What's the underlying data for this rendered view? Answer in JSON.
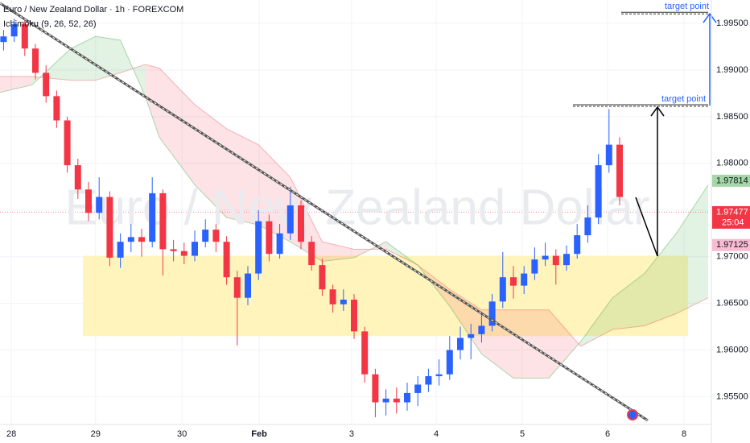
{
  "chart_data": {
    "type": "candlestick",
    "title": "Euro / New Zealand Dollar · 1h · FOREXCOM",
    "subtitle": "Ichimoku (9, 26, 52, 26)",
    "watermark": "Euro / New Zealand Dollar",
    "up_color": "#2962ff",
    "down_color": "#f23645",
    "x": [
      1,
      4,
      7,
      10,
      13,
      16,
      19,
      22,
      25,
      28,
      31,
      34,
      37,
      40,
      43,
      46,
      49,
      52,
      55,
      58,
      61,
      64,
      67,
      70,
      73,
      76,
      79,
      82,
      85,
      88,
      91,
      94,
      97,
      100,
      103,
      106,
      109,
      112,
      115,
      118,
      121,
      124,
      127,
      130,
      133,
      136,
      139,
      142,
      145,
      148,
      151,
      154,
      157,
      160,
      163,
      166,
      169,
      172,
      175
    ],
    "open": [
      1.993,
      1.9936,
      1.9949,
      1.9923,
      1.9897,
      1.9872,
      1.9846,
      1.9798,
      1.9772,
      1.9747,
      1.9764,
      1.9699,
      1.9716,
      1.9721,
      1.9716,
      1.9768,
      1.9708,
      1.9706,
      1.9701,
      1.9716,
      1.9729,
      1.9716,
      1.9678,
      1.9656,
      1.9682,
      1.9738,
      1.9703,
      1.9725,
      1.9755,
      1.9716,
      1.9691,
      1.9665,
      1.9649,
      1.9654,
      1.962,
      1.9574,
      1.9544,
      1.9548,
      1.9544,
      1.9554,
      1.9563,
      1.9572,
      1.9574,
      1.96,
      1.9613,
      1.9617,
      1.9626,
      1.9652,
      1.9678,
      1.9669,
      1.9682,
      1.9697,
      1.9701,
      1.9691,
      1.9703,
      1.9723,
      1.9742,
      1.9798,
      1.982
    ],
    "high": [
      1.9943,
      1.9955,
      1.9953,
      1.9928,
      1.9905,
      1.9878,
      1.985,
      1.9805,
      1.978,
      1.9785,
      1.977,
      1.9725,
      1.9735,
      1.973,
      1.9785,
      1.9772,
      1.9718,
      1.9715,
      1.9728,
      1.974,
      1.9735,
      1.9722,
      1.9685,
      1.969,
      1.975,
      1.9745,
      1.9735,
      1.9775,
      1.976,
      1.9722,
      1.9698,
      1.967,
      1.9665,
      1.966,
      1.9625,
      1.958,
      1.9558,
      1.956,
      1.9565,
      1.9572,
      1.958,
      1.959,
      1.9615,
      1.9625,
      1.9628,
      1.964,
      1.966,
      1.9705,
      1.969,
      1.969,
      1.971,
      1.9715,
      1.9708,
      1.9712,
      1.9735,
      1.9755,
      1.981,
      1.9858,
      1.9828
    ],
    "low": [
      1.9921,
      1.993,
      1.9915,
      1.989,
      1.9865,
      1.9838,
      1.979,
      1.9762,
      1.9738,
      1.974,
      1.969,
      1.9688,
      1.9705,
      1.97,
      1.971,
      1.968,
      1.9695,
      1.9692,
      1.9695,
      1.971,
      1.9705,
      1.967,
      1.9605,
      1.9648,
      1.9675,
      1.9695,
      1.9698,
      1.9718,
      1.9708,
      1.9685,
      1.9658,
      1.964,
      1.9642,
      1.9612,
      1.9565,
      1.9528,
      1.953,
      1.9532,
      1.9535,
      1.954,
      1.9555,
      1.9562,
      1.9568,
      1.959,
      1.959,
      1.9608,
      1.962,
      1.9645,
      1.9655,
      1.966,
      1.9675,
      1.969,
      1.967,
      1.9685,
      1.9698,
      1.9715,
      1.9735,
      1.979,
      1.9755
    ],
    "close": [
      1.9936,
      1.9949,
      1.9923,
      1.9897,
      1.9872,
      1.9846,
      1.9798,
      1.9772,
      1.9747,
      1.9764,
      1.9699,
      1.9716,
      1.9721,
      1.9716,
      1.9768,
      1.9708,
      1.9706,
      1.9701,
      1.9716,
      1.9729,
      1.9716,
      1.9678,
      1.9656,
      1.9682,
      1.9738,
      1.9703,
      1.9725,
      1.9755,
      1.9716,
      1.9691,
      1.9665,
      1.9649,
      1.9654,
      1.962,
      1.9574,
      1.9544,
      1.9548,
      1.9544,
      1.9554,
      1.9563,
      1.9572,
      1.9574,
      1.96,
      1.9613,
      1.9617,
      1.9626,
      1.9652,
      1.9678,
      1.9669,
      1.9682,
      1.9697,
      1.9701,
      1.9691,
      1.9703,
      1.9723,
      1.9742,
      1.9798,
      1.982,
      1.9764
    ],
    "ichimoku": {
      "x": [
        0,
        9,
        20,
        27,
        34,
        41,
        45,
        55,
        64,
        73,
        82,
        91,
        100,
        109,
        118,
        127,
        136,
        145,
        155,
        164,
        173,
        182,
        191,
        200
      ],
      "span_a": [
        1.9876,
        1.9884,
        1.9923,
        1.9936,
        1.9932,
        1.9872,
        1.9828,
        1.9777,
        1.9742,
        1.9734,
        1.9716,
        1.9695,
        1.9699,
        1.9716,
        1.9691,
        1.9647,
        1.9596,
        1.957,
        1.957,
        1.9609,
        1.9656,
        1.9682,
        1.9725,
        1.9777
      ],
      "span_b": [
        1.9893,
        1.9893,
        1.9889,
        1.9889,
        1.9897,
        1.9906,
        1.9902,
        1.9863,
        1.9837,
        1.982,
        1.9785,
        1.9716,
        1.9708,
        1.9708,
        1.9691,
        1.9665,
        1.9643,
        1.9643,
        1.9643,
        1.9604,
        1.9622,
        1.9626,
        1.9639,
        1.9656
      ]
    },
    "zone": [
      1.9615,
      1.9701
    ],
    "targets": [
      {
        "label": "target point",
        "value": 1.9862
      },
      {
        "label": "target point",
        "value": 1.9961
      }
    ],
    "price_labels": [
      {
        "value": 1.97814,
        "color": "#a5d6a7"
      },
      {
        "value": 1.97477,
        "color": "#f23645"
      },
      {
        "value": 1.97125,
        "color": "#f8bbd0"
      }
    ],
    "countdown": "25:04",
    "xlim": [
      0,
      200
    ],
    "xticks": [
      {
        "value": 3.2,
        "label": "28"
      },
      {
        "value": 27,
        "label": "29"
      },
      {
        "value": 51.4,
        "label": "30"
      },
      {
        "value": 73.2,
        "label": "Feb"
      },
      {
        "value": 99.3,
        "label": "3"
      },
      {
        "value": 123.2,
        "label": "4"
      },
      {
        "value": 147.5,
        "label": "5"
      },
      {
        "value": 171.6,
        "label": "6"
      },
      {
        "value": 193.2,
        "label": "8"
      }
    ],
    "ylim": [
      1.9522,
      1.9975
    ],
    "yticks": [
      {
        "value": 1.955,
        "label": "1.95500"
      },
      {
        "value": 1.96,
        "label": "1.96000"
      },
      {
        "value": 1.965,
        "label": "1.96500"
      },
      {
        "value": 1.97,
        "label": "1.97000"
      },
      {
        "value": 1.975,
        "label": "1.97500"
      },
      {
        "value": 1.98,
        "label": "1.98000"
      },
      {
        "value": 1.985,
        "label": "1.98500"
      },
      {
        "value": 1.99,
        "label": "1.99000"
      },
      {
        "value": 1.995,
        "label": "1.99500"
      }
    ],
    "grid": true
  }
}
